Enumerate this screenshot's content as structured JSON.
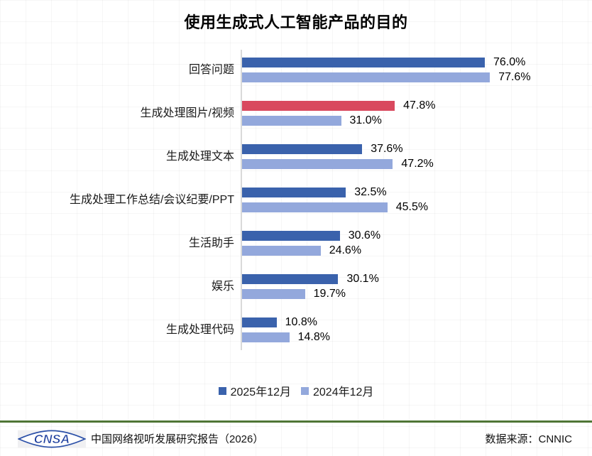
{
  "title": "使用生成式人工智能产品的目的",
  "chart_data": {
    "type": "bar",
    "orientation": "horizontal",
    "title": "使用生成式人工智能产品的目的",
    "categories": [
      "回答问题",
      "生成处理图片/视频",
      "生成处理文本",
      "生成处理工作总结/会议纪要/PPT",
      "生活助手",
      "娱乐",
      "生成处理代码"
    ],
    "series": [
      {
        "name": "2025年12月",
        "color": "#3A62AC",
        "values": [
          76.0,
          47.8,
          37.6,
          32.5,
          30.6,
          30.1,
          10.8
        ]
      },
      {
        "name": "2024年12月",
        "color": "#93A8DC",
        "values": [
          77.6,
          31.0,
          47.2,
          45.5,
          24.6,
          19.7,
          14.8
        ]
      }
    ],
    "highlight": {
      "series": 0,
      "category_index": 1,
      "category": "生成处理图片/视频",
      "color": "#D9495E"
    },
    "value_suffix": "%",
    "value_decimals": 1,
    "xlim": [
      0,
      100
    ],
    "grid": false,
    "legend_position": "bottom",
    "axis_color": "#D9D9D9"
  },
  "legend": {
    "items": [
      {
        "label": "2025年12月",
        "color": "#3A62AC"
      },
      {
        "label": "2024年12月",
        "color": "#93A8DC"
      }
    ]
  },
  "footer": {
    "logo_text": "CNSA",
    "logo_color": "#1E3F9E",
    "report_title": "中国网络视听发展研究报告（2026）",
    "source": "数据来源：CNNIC",
    "divider_color": "#4F7636"
  }
}
